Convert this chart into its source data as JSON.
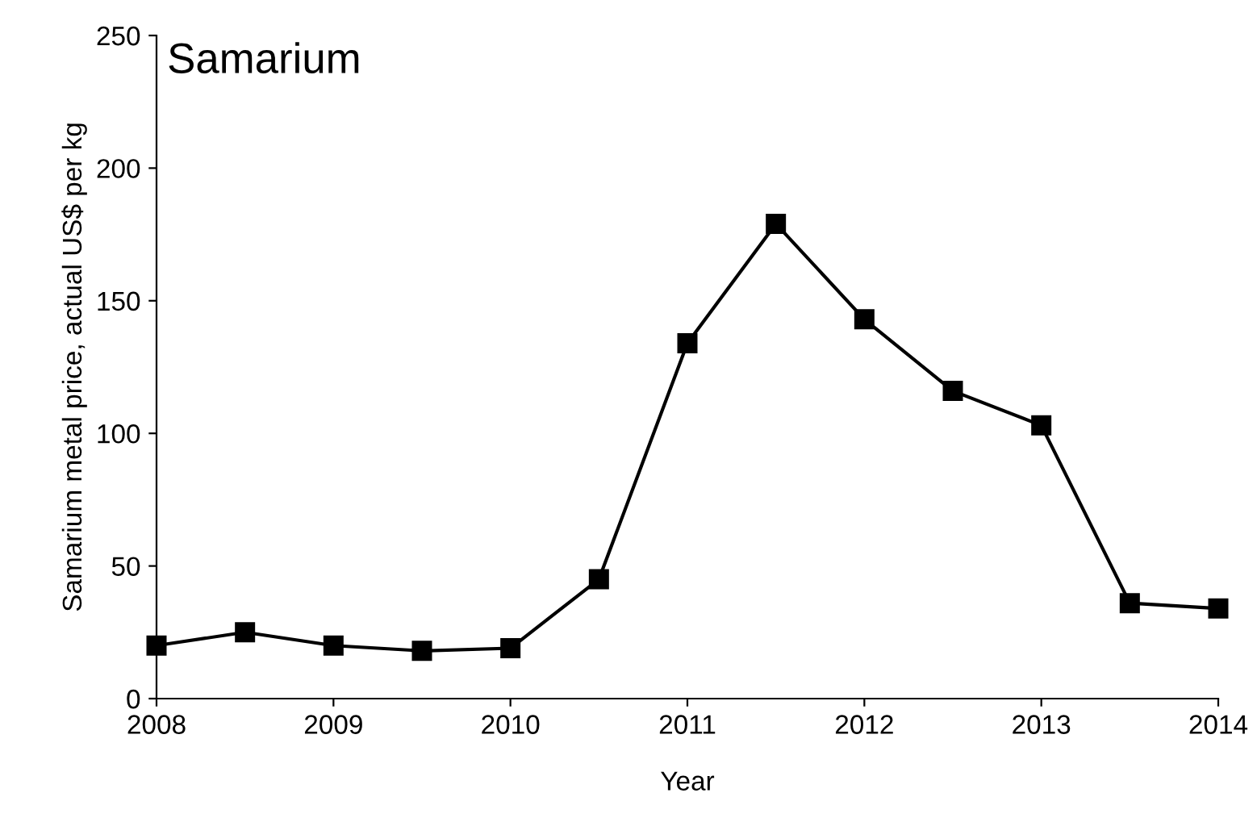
{
  "chart_data": {
    "type": "line",
    "title": "Samarium",
    "xlabel": "Year",
    "ylabel": "Samarium metal price, actual US$ per kg",
    "x": [
      2008,
      2008.5,
      2009,
      2009.5,
      2010,
      2010.5,
      2011,
      2011.5,
      2012,
      2012.5,
      2013,
      2013.5,
      2014
    ],
    "series": [
      {
        "color": "#000000",
        "values": [
          20,
          25,
          20,
          18,
          19,
          45,
          134,
          179,
          143,
          116,
          103,
          36,
          34
        ]
      }
    ],
    "xlim": [
      2008,
      2014
    ],
    "xticks": [
      2008,
      2009,
      2010,
      2011,
      2012,
      2013,
      2014
    ],
    "ylim": [
      0,
      250
    ],
    "yticks": [
      0,
      50,
      100,
      150,
      200,
      250
    ],
    "grid": false,
    "legend": false,
    "marker": "square",
    "line_style": "solid"
  }
}
